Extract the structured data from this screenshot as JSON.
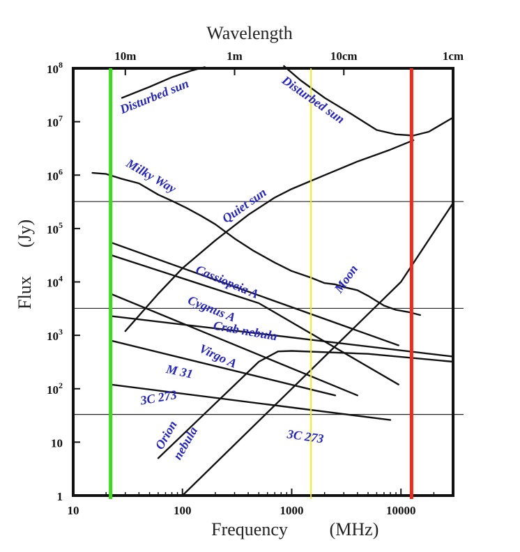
{
  "chart_data": {
    "type": "line",
    "title": "Wavelength",
    "xlabel": "Frequency",
    "xunit": "(MHz)",
    "ylabel": "Flux",
    "yunit": "(Jy)",
    "xscale": "log",
    "yscale": "log",
    "xlim": [
      10,
      30000
    ],
    "ylim": [
      1,
      100000000
    ],
    "x_ticks": [
      {
        "value": 10,
        "label": "10"
      },
      {
        "value": 100,
        "label": "100"
      },
      {
        "value": 1000,
        "label": "1000"
      },
      {
        "value": 10000,
        "label": "10000"
      }
    ],
    "y_ticks": [
      {
        "value": 1,
        "base": "1",
        "exp": ""
      },
      {
        "value": 10,
        "base": "10",
        "exp": ""
      },
      {
        "value": 100,
        "base": "10",
        "exp": "2"
      },
      {
        "value": 1000,
        "base": "10",
        "exp": "3"
      },
      {
        "value": 10000,
        "base": "10",
        "exp": "4"
      },
      {
        "value": 100000,
        "base": "10",
        "exp": "5"
      },
      {
        "value": 1000000,
        "base": "10",
        "exp": "6"
      },
      {
        "value": 10000000,
        "base": "10",
        "exp": "7"
      },
      {
        "value": 100000000,
        "base": "10",
        "exp": "8"
      }
    ],
    "wavelength_ticks": [
      {
        "freq": 30,
        "label": "10m"
      },
      {
        "freq": 300,
        "label": "1m"
      },
      {
        "freq": 3000,
        "label": "10cm"
      },
      {
        "freq": 30000,
        "label": "1cm"
      }
    ],
    "vertical_lines": [
      {
        "x": 22,
        "color": "#3ddc1a"
      },
      {
        "x": 1500,
        "color": "#f3f000"
      },
      {
        "x": 12500,
        "color": "#ee2a1a"
      }
    ],
    "horizontal_lines": [
      {
        "y": 320000
      },
      {
        "y": 3200
      },
      {
        "y": 33
      }
    ],
    "series": [
      {
        "name": "Disturbed sun (low)",
        "points": [
          [
            28,
            28000000
          ],
          [
            50,
            45000000
          ],
          [
            80,
            68000000
          ],
          [
            120,
            90000000
          ],
          [
            160,
            105000000
          ]
        ]
      },
      {
        "name": "Disturbed sun (high)",
        "points": [
          [
            850,
            110000000
          ],
          [
            1200,
            60000000
          ],
          [
            2000,
            28000000
          ],
          [
            3500,
            14000000
          ],
          [
            6000,
            7000000
          ],
          [
            9000,
            5800000
          ],
          [
            13000,
            5500000
          ],
          [
            18000,
            6500000
          ],
          [
            30000,
            12000000
          ]
        ]
      },
      {
        "name": "Milky Way",
        "points": [
          [
            15,
            1100000
          ],
          [
            20,
            1050000
          ],
          [
            28,
            850000
          ],
          [
            40,
            700000
          ],
          [
            60,
            430000
          ],
          [
            80,
            330000
          ],
          [
            110,
            240000
          ],
          [
            150,
            170000
          ],
          [
            200,
            120000
          ],
          [
            300,
            65000
          ],
          [
            450,
            38000
          ],
          [
            700,
            23000
          ],
          [
            1000,
            16000
          ],
          [
            1500,
            12000
          ],
          [
            2000,
            9500
          ],
          [
            2500,
            9000
          ],
          [
            3000,
            8000
          ],
          [
            4000,
            7000
          ],
          [
            5000,
            5500
          ],
          [
            7000,
            3600
          ],
          [
            9000,
            3000
          ],
          [
            12000,
            2700
          ],
          [
            15000,
            2400
          ]
        ]
      },
      {
        "name": "Quiet sun",
        "points": [
          [
            30,
            1200
          ],
          [
            60,
            6000
          ],
          [
            100,
            18000
          ],
          [
            200,
            60000
          ],
          [
            400,
            180000
          ],
          [
            700,
            380000
          ],
          [
            1000,
            550000
          ],
          [
            2000,
            1000000
          ],
          [
            4000,
            1800000
          ],
          [
            8000,
            3000000
          ],
          [
            13000,
            4500000
          ]
        ]
      },
      {
        "name": "Moon",
        "points": [
          [
            100,
            1
          ],
          [
            1000,
            100
          ],
          [
            10000,
            10000
          ],
          [
            30000,
            300000
          ]
        ]
      },
      {
        "name": "Cassiopeia A",
        "points": [
          [
            22,
            55000
          ],
          [
            9500,
            650
          ]
        ]
      },
      {
        "name": "Cygnus A",
        "points": [
          [
            22,
            32000
          ],
          [
            500,
            4000
          ],
          [
            9500,
            120
          ]
        ]
      },
      {
        "name": "Crab nebula",
        "points": [
          [
            22,
            2300
          ],
          [
            30000,
            400
          ]
        ]
      },
      {
        "name": "Virgo A",
        "points": [
          [
            22,
            6000
          ],
          [
            4000,
            75
          ]
        ]
      },
      {
        "name": "M 31",
        "points": [
          [
            22,
            800
          ],
          [
            2500,
            75
          ]
        ]
      },
      {
        "name": "3C 273",
        "points": [
          [
            22,
            120
          ],
          [
            8000,
            26
          ]
        ]
      },
      {
        "name": "Orion nebula",
        "points": [
          [
            60,
            5
          ],
          [
            500,
            320
          ],
          [
            750,
            500
          ],
          [
            1000,
            510
          ],
          [
            5000,
            450
          ],
          [
            30000,
            320
          ]
        ]
      }
    ],
    "annotations": [
      {
        "text": "Disturbed sun",
        "x": 28,
        "y": 14000000,
        "angle": -22
      },
      {
        "text": "Disturbed sun",
        "x": 800,
        "y": 55000000,
        "angle": 35
      },
      {
        "text": "Milky Way",
        "x": 30,
        "y": 1500000,
        "angle": 30
      },
      {
        "text": "Quiet sun",
        "x": 250,
        "y": 125000,
        "angle": -35
      },
      {
        "text": "Moon",
        "x": 2800,
        "y": 6000,
        "angle": -55
      },
      {
        "text": "Cassiopeia A",
        "x": 130,
        "y": 15000,
        "angle": 23
      },
      {
        "text": "Cygnus A",
        "x": 110,
        "y": 4000,
        "angle": 22
      },
      {
        "text": "Crab nebula",
        "x": 190,
        "y": 1300,
        "angle": 10
      },
      {
        "text": "Virgo A",
        "x": 140,
        "y": 500,
        "angle": 25
      },
      {
        "text": "M 31",
        "x": 70,
        "y": 200,
        "angle": 12
      },
      {
        "text": "3C 273",
        "x": 42,
        "y": 50,
        "angle": -10
      },
      {
        "text": "3C 273",
        "x": 900,
        "y": 12,
        "angle": 8
      },
      {
        "text": "Orion",
        "x": 65,
        "y": 7,
        "angle": -60
      },
      {
        "text": "nebula",
        "x": 95,
        "y": 4.5,
        "angle": -60
      }
    ]
  }
}
